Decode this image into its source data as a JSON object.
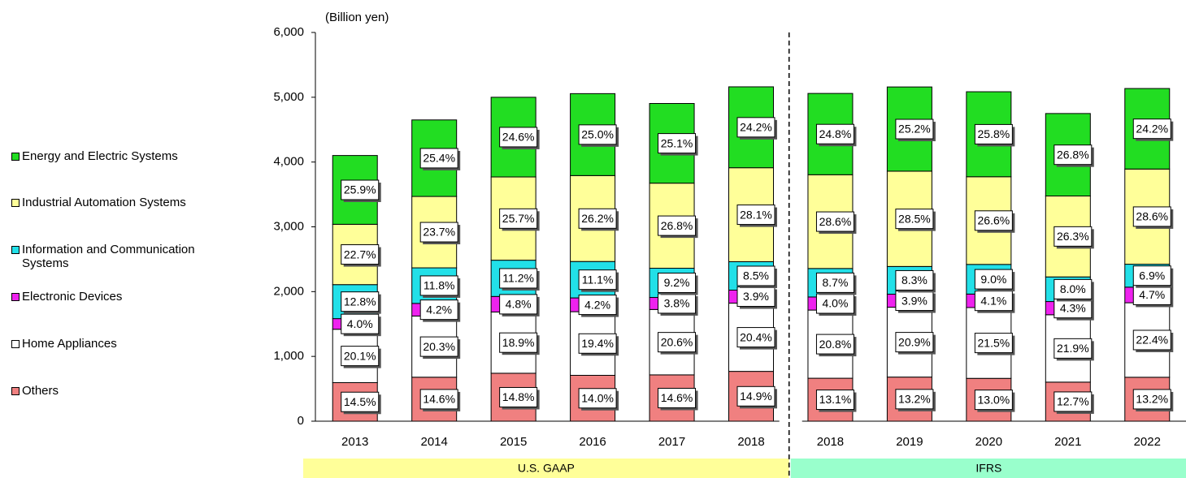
{
  "chart_data": {
    "type": "stacked_bar",
    "unit_label": "(Billion yen)",
    "categories": [
      "2013",
      "2014",
      "2015",
      "2016",
      "2017",
      "2018",
      "2018",
      "2019",
      "2020",
      "2021",
      "2022"
    ],
    "groups": [
      {
        "label": "U.S. GAAP",
        "count": 6,
        "color": "#ffff99"
      },
      {
        "label": "IFRS",
        "count": 5,
        "color": "#99ffcc"
      }
    ],
    "ylim": [
      0,
      6000
    ],
    "yticks": [
      0,
      {
        "value": 1000,
        "label": "1,000"
      },
      {
        "value": 2000,
        "label": "2,000"
      },
      {
        "value": 3000,
        "label": "3,000"
      },
      {
        "value": 4000,
        "label": "4,000"
      },
      {
        "value": 5000,
        "label": "5,000"
      },
      {
        "value": 6000,
        "label": "6,000"
      }
    ],
    "series": [
      {
        "name": "Others",
        "color": "#f08080",
        "values": [
          595,
          679,
          740,
          708,
          715,
          769,
          663,
          681,
          661,
          603,
          678
        ],
        "share_labels": [
          "14.5%",
          "14.6%",
          "14.8%",
          "14.0%",
          "14.6%",
          "14.9%",
          "13.1%",
          "13.2%",
          "13.0%",
          "12.7%",
          "13.2%"
        ]
      },
      {
        "name": "Home Appliances",
        "color": "#ffffff",
        "values": [
          824,
          944,
          945,
          982,
          1009,
          1053,
          1052,
          1078,
          1093,
          1040,
          1150
        ],
        "share_labels": [
          "20.1%",
          "20.3%",
          "18.9%",
          "19.4%",
          "20.6%",
          "20.4%",
          "20.8%",
          "20.9%",
          "21.5%",
          "21.9%",
          "22.4%"
        ]
      },
      {
        "name": "Electronic Devices",
        "color": "#ee22ee",
        "values": [
          164,
          195,
          240,
          213,
          186,
          201,
          202,
          201,
          208,
          204,
          241
        ],
        "share_labels": [
          "4.0%",
          "4.2%",
          "4.8%",
          "4.2%",
          "3.8%",
          "3.9%",
          "4.0%",
          "3.9%",
          "4.1%",
          "4.3%",
          "4.7%"
        ]
      },
      {
        "name": "Information and Communication Systems",
        "color": "#22e0e8",
        "values": [
          525,
          549,
          560,
          562,
          451,
          439,
          440,
          428,
          458,
          380,
          354
        ],
        "share_labels": [
          "12.8%",
          "11.8%",
          "11.2%",
          "11.1%",
          "9.2%",
          "8.5%",
          "8.7%",
          "8.3%",
          "9.0%",
          "8.0%",
          "6.9%"
        ]
      },
      {
        "name": "Industrial Automation Systems",
        "color": "#ffff99",
        "values": [
          931,
          1102,
          1285,
          1326,
          1313,
          1450,
          1447,
          1471,
          1353,
          1249,
          1469
        ],
        "share_labels": [
          "22.7%",
          "23.7%",
          "25.7%",
          "26.2%",
          "26.8%",
          "28.1%",
          "28.6%",
          "28.5%",
          "26.6%",
          "26.3%",
          "28.6%"
        ]
      },
      {
        "name": "Energy and Electric Systems",
        "color": "#22dd22",
        "values": [
          1062,
          1181,
          1230,
          1265,
          1230,
          1249,
          1255,
          1300,
          1312,
          1273,
          1243
        ],
        "share_labels": [
          "25.9%",
          "25.4%",
          "24.6%",
          "25.0%",
          "25.1%",
          "24.2%",
          "24.8%",
          "25.2%",
          "25.8%",
          "26.8%",
          "24.2%"
        ]
      }
    ]
  }
}
